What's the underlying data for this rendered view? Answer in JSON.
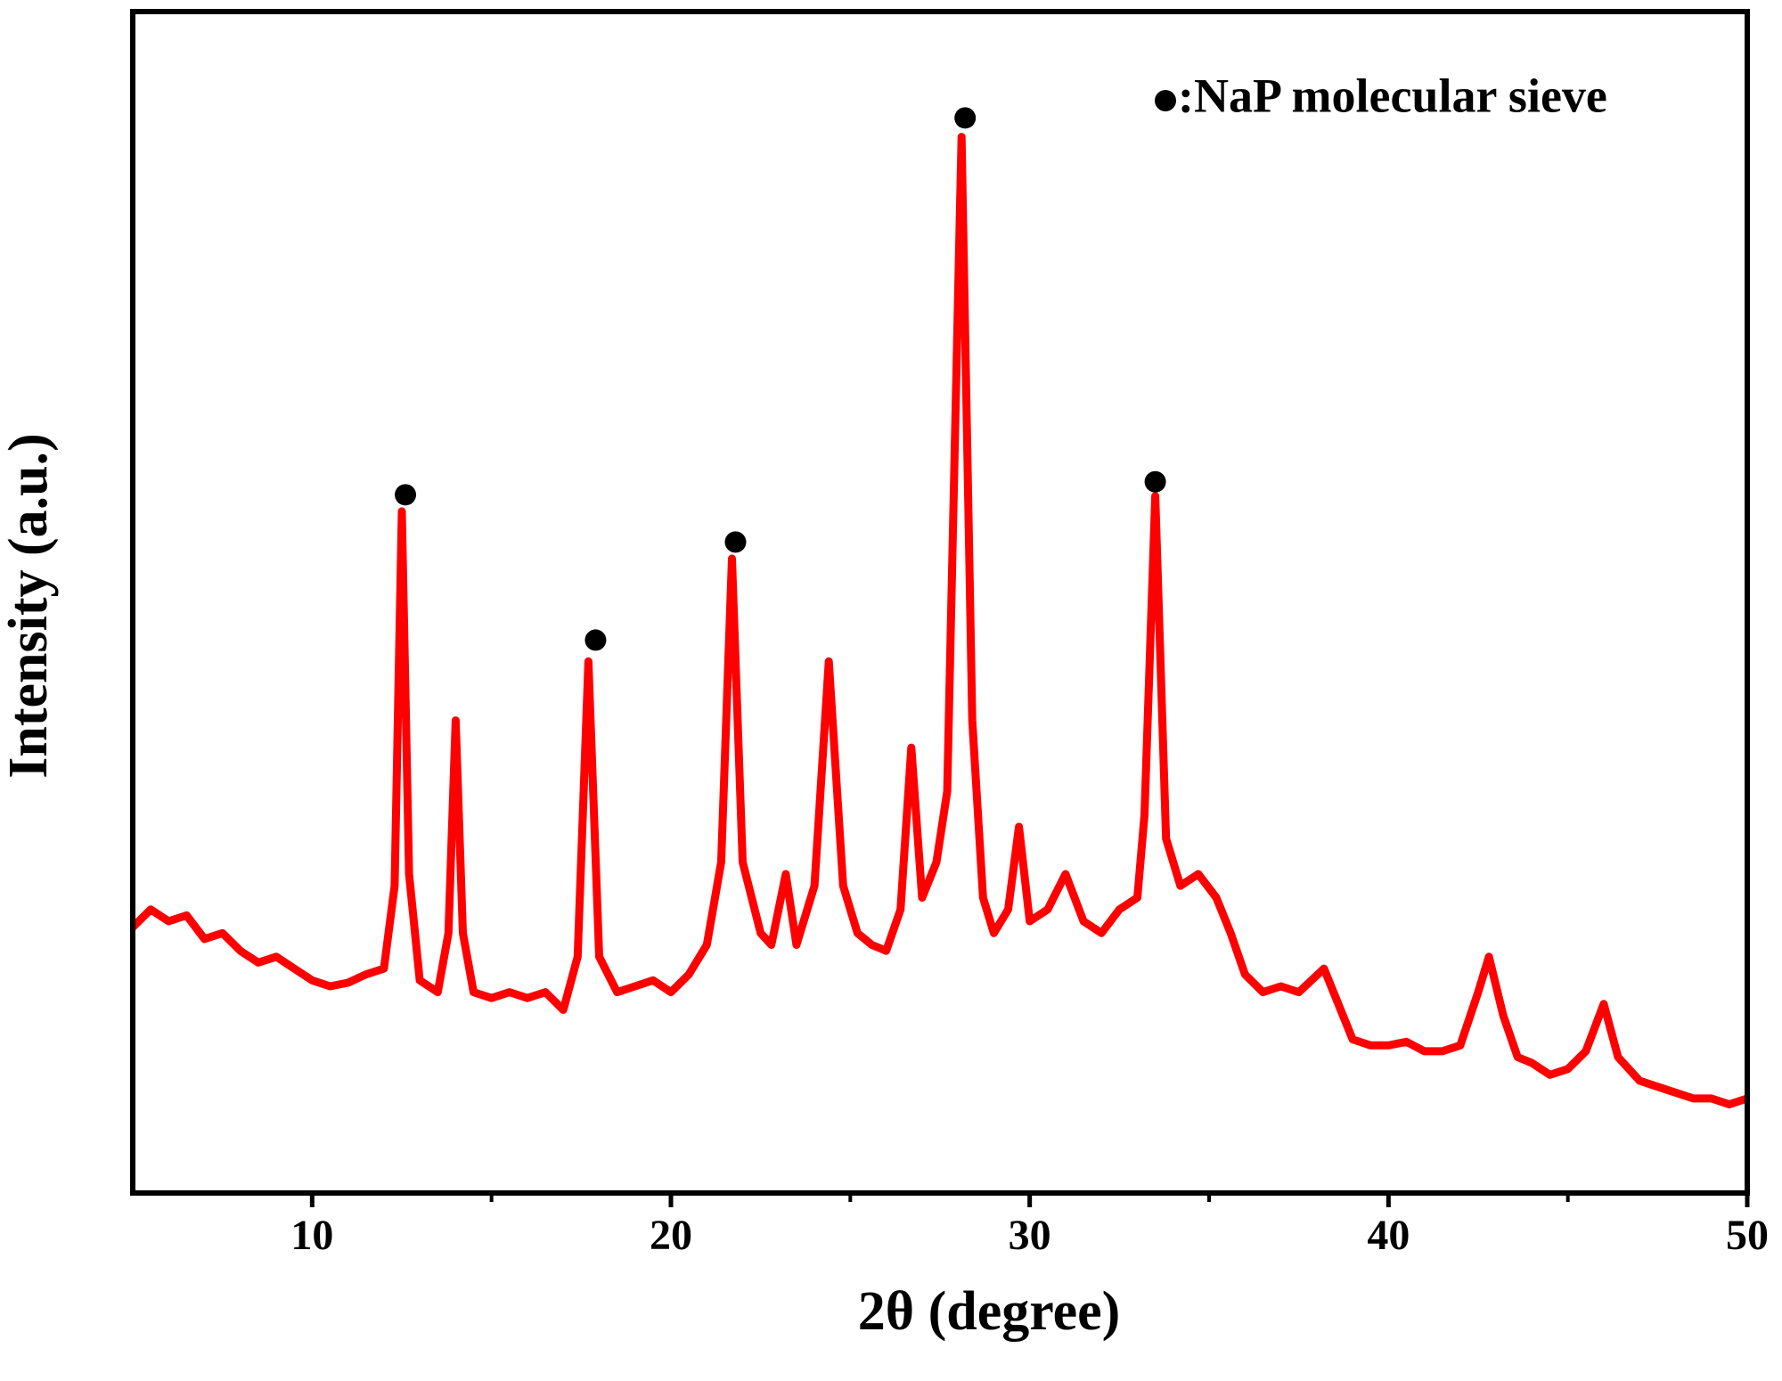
{
  "chart_data": {
    "type": "line",
    "xlabel": "2θ (degree)",
    "ylabel": "Intensity (a.u.)",
    "xlim": [
      5,
      50
    ],
    "xticks": [
      10,
      20,
      30,
      40,
      50
    ],
    "xticks_minor": [
      15,
      25,
      35,
      45
    ],
    "ylim": [
      0,
      100
    ],
    "color": "#ff0000",
    "x": [
      5.0,
      5.5,
      6.0,
      6.5,
      7.0,
      7.5,
      8.0,
      8.5,
      9.0,
      9.5,
      10.0,
      10.5,
      11.0,
      11.5,
      12.0,
      12.3,
      12.5,
      12.7,
      13.0,
      13.5,
      13.8,
      14.0,
      14.2,
      14.5,
      15.0,
      15.5,
      16.0,
      16.5,
      17.0,
      17.4,
      17.7,
      18.0,
      18.5,
      19.0,
      19.5,
      20.0,
      20.5,
      21.0,
      21.4,
      21.7,
      22.0,
      22.5,
      22.8,
      23.2,
      23.5,
      24.0,
      24.4,
      24.8,
      25.2,
      25.6,
      26.0,
      26.4,
      26.7,
      27.0,
      27.4,
      27.7,
      28.1,
      28.4,
      28.7,
      29.0,
      29.4,
      29.7,
      30.0,
      30.5,
      31.0,
      31.5,
      32.0,
      32.5,
      33.0,
      33.2,
      33.5,
      33.8,
      34.2,
      34.7,
      35.2,
      35.6,
      36.0,
      36.5,
      37.0,
      37.5,
      38.2,
      38.6,
      39.0,
      39.5,
      40.0,
      40.5,
      41.0,
      41.5,
      42.0,
      42.5,
      42.8,
      43.2,
      43.6,
      44.0,
      44.5,
      45.0,
      45.5,
      46.0,
      46.4,
      47.0,
      47.5,
      48.0,
      48.5,
      49.0,
      49.5,
      50.0
    ],
    "values": [
      22.5,
      24,
      23,
      23.5,
      21.5,
      22,
      20.5,
      19.5,
      20,
      19,
      18,
      17.5,
      17.8,
      18.5,
      19,
      26,
      57.7,
      27,
      18,
      17,
      22,
      40,
      22,
      17,
      16.5,
      17,
      16.5,
      17,
      15.5,
      20,
      45,
      20,
      17,
      17.5,
      18,
      17,
      18.5,
      21,
      28,
      53.7,
      28,
      22,
      21,
      27,
      21,
      26,
      45,
      26,
      22,
      21,
      20.5,
      24,
      37.7,
      25,
      28,
      34,
      89.4,
      40,
      25,
      22,
      24,
      31,
      23,
      24,
      27,
      23,
      22,
      24,
      25,
      32,
      59,
      30,
      26,
      27,
      25,
      22,
      18.5,
      17,
      17.5,
      17,
      19,
      16,
      13,
      12.5,
      12.5,
      12.8,
      12,
      12,
      12.5,
      17,
      20,
      15,
      11.5,
      11,
      10,
      10.5,
      12,
      16,
      11.5,
      9.5,
      9,
      8.5,
      8,
      8,
      7.5,
      8
    ],
    "markers": {
      "name": ":NaP molecular sieve",
      "color": "#000000",
      "x": [
        12.6,
        17.9,
        21.8,
        28.2,
        33.5
      ],
      "values": [
        59.1,
        46.8,
        55.1,
        91,
        60.2
      ]
    },
    "legend": "upper right"
  }
}
